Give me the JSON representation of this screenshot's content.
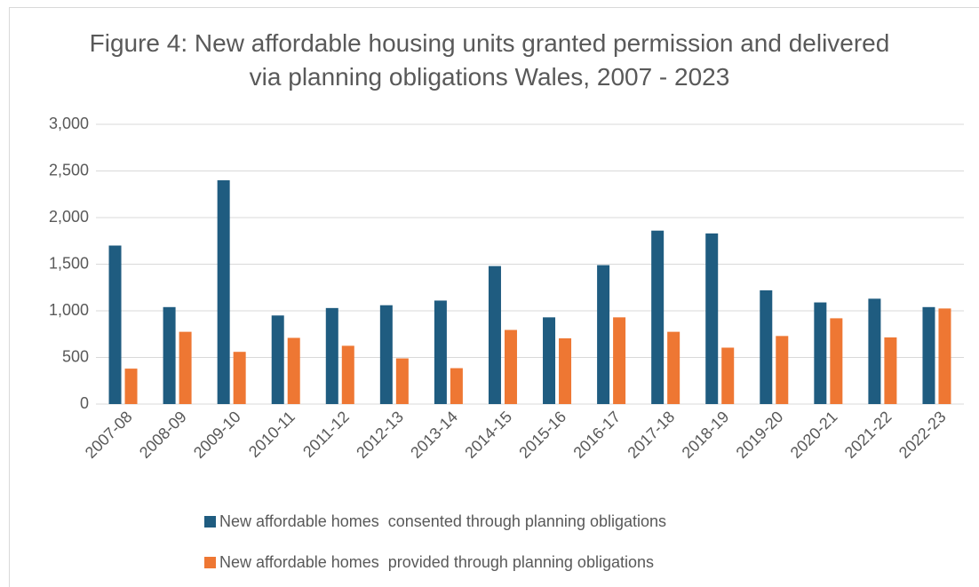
{
  "chart_data": {
    "type": "bar",
    "title": "Figure 4: New affordable housing units granted permission and delivered via planning obligations Wales, 2007 - 2023",
    "categories": [
      "2007-08",
      "2008-09",
      "2009-10",
      "2010-11",
      "2011-12",
      "2012-13",
      "2013-14",
      "2014-15",
      "2015-16",
      "2016-17",
      "2017-18",
      "2018-19",
      "2019-20",
      "2020-21",
      "2021-22",
      "2022-23"
    ],
    "series": [
      {
        "name": "New affordable homes  consented through planning obligations",
        "color": "#1f5c80",
        "values": [
          1700,
          1040,
          2400,
          950,
          1030,
          1060,
          1110,
          1480,
          930,
          1490,
          1860,
          1830,
          1220,
          1090,
          1130,
          1040
        ]
      },
      {
        "name": "New affordable homes  provided through planning obligations",
        "color": "#ee7733",
        "values": [
          380,
          775,
          560,
          710,
          625,
          490,
          385,
          795,
          705,
          930,
          775,
          605,
          730,
          920,
          715,
          1025
        ]
      }
    ],
    "ylim": [
      0,
      3000
    ],
    "yticks": [
      0,
      500,
      {
        "value": 1000,
        "label": "1,000"
      },
      {
        "value": 1500,
        "label": "1,500"
      },
      {
        "value": 2000,
        "label": "2,000"
      },
      {
        "value": 2500,
        "label": "2,500"
      },
      {
        "value": 3000,
        "label": "3,000"
      }
    ],
    "grid": true,
    "legend": "bottom"
  }
}
